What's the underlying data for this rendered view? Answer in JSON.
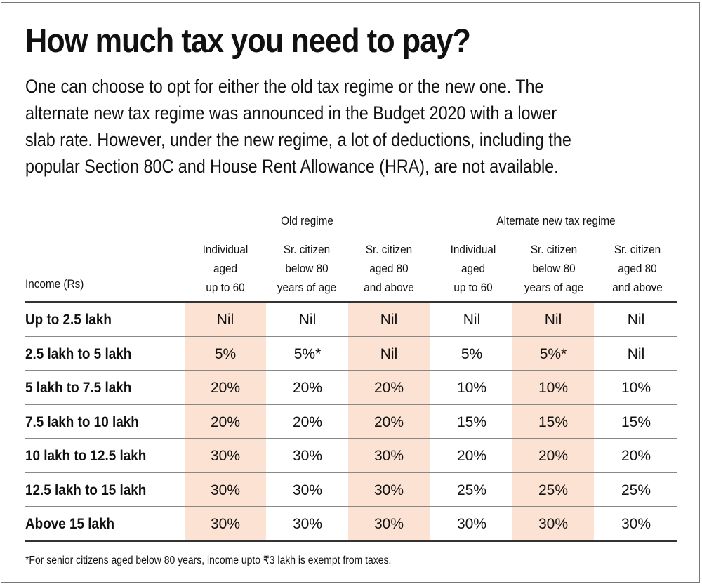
{
  "title": "How much tax you need to pay?",
  "intro_lines": [
    "One can choose to opt for either the old tax regime or the new one. The",
    "alternate new tax regime was announced in the Budget 2020 with a lower",
    "slab rate. However, under the new regime, a lot of deductions, including the",
    "popular Section 80C and House Rent Allowance (HRA), are not available."
  ],
  "table": {
    "row_header": "Income (Rs)",
    "groups": [
      "Old regime",
      "Alternate new tax regime"
    ],
    "columns": [
      [
        "Individual",
        "aged",
        "up to 60"
      ],
      [
        "Sr. citizen",
        "below 80",
        "years of age"
      ],
      [
        "Sr. citizen",
        "aged 80",
        "and above"
      ],
      [
        "Individual",
        "aged",
        "up to 60"
      ],
      [
        "Sr. citizen",
        "below 80",
        "years of age"
      ],
      [
        "Sr. citizen",
        "aged 80",
        "and above"
      ]
    ],
    "rows": [
      {
        "label": "Up to 2.5 lakh",
        "values": [
          "Nil",
          "Nil",
          "Nil",
          "Nil",
          "Nil",
          "Nil"
        ]
      },
      {
        "label": "2.5 lakh to 5 lakh",
        "values": [
          "5%",
          "5%*",
          "Nil",
          "5%",
          "5%*",
          "Nil"
        ]
      },
      {
        "label": "5 lakh to 7.5 lakh",
        "values": [
          "20%",
          "20%",
          "20%",
          "10%",
          "10%",
          "10%"
        ]
      },
      {
        "label": "7.5 lakh to 10 lakh",
        "values": [
          "20%",
          "20%",
          "20%",
          "15%",
          "15%",
          "15%"
        ]
      },
      {
        "label": "10 lakh to 12.5 lakh",
        "values": [
          "30%",
          "30%",
          "30%",
          "20%",
          "20%",
          "20%"
        ]
      },
      {
        "label": "12.5 lakh to 15 lakh",
        "values": [
          "30%",
          "30%",
          "30%",
          "25%",
          "25%",
          "25%"
        ]
      },
      {
        "label": "Above 15 lakh",
        "values": [
          "30%",
          "30%",
          "30%",
          "30%",
          "30%",
          "30%"
        ]
      }
    ]
  },
  "footnote": "*For senior citizens aged below 80 years, income upto ₹3 lakh is exempt from taxes.",
  "colors": {
    "highlight": "#fbe2d2"
  }
}
